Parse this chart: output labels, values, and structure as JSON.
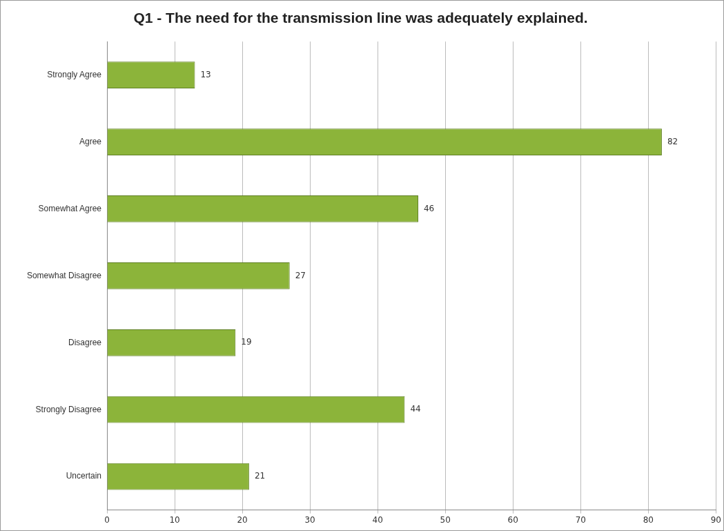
{
  "chart_data": {
    "type": "bar",
    "orientation": "horizontal",
    "title": "Q1 - The need for the transmission line was adequately explained.",
    "categories": [
      "Strongly Agree",
      "Agree",
      "Somewhat Agree",
      "Somewhat Disagree",
      "Disagree",
      "Strongly Disagree",
      "Uncertain"
    ],
    "values": [
      13,
      82,
      46,
      27,
      19,
      44,
      21
    ],
    "color": "#8cb43a",
    "xlim": [
      0,
      90
    ],
    "xticks": [
      0,
      10,
      20,
      30,
      40,
      50,
      60,
      70,
      80,
      90
    ],
    "grid": "x",
    "data_labels": true,
    "legend": false
  }
}
